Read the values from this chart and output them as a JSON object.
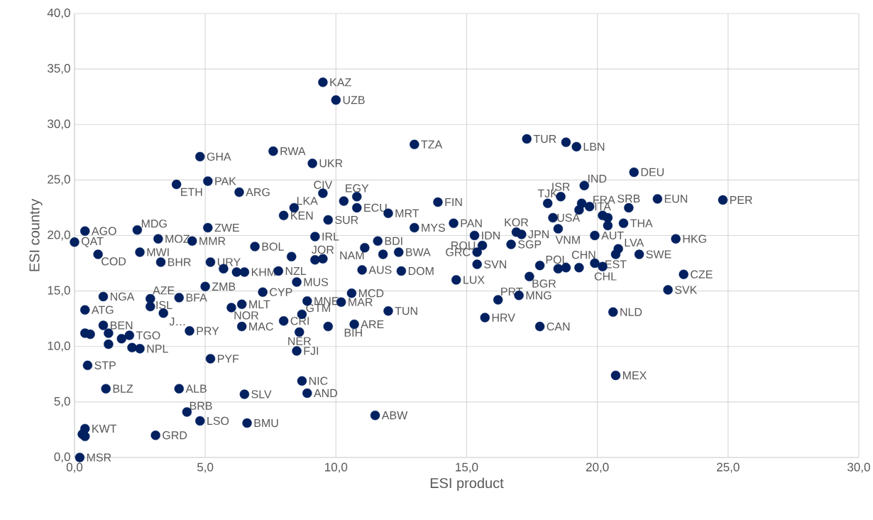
{
  "chart_data": {
    "type": "scatter",
    "xlabel": "ESI product",
    "ylabel": "ESI country",
    "color": "#002060",
    "marker": "circle",
    "grid": true,
    "xlim": [
      0,
      30
    ],
    "ylim": [
      0,
      40
    ],
    "xticks": [
      {
        "value": 0,
        "label": "0,0"
      },
      {
        "value": 5,
        "label": "5,0"
      },
      {
        "value": 10,
        "label": "10,0"
      },
      {
        "value": 15,
        "label": "15,0"
      },
      {
        "value": 20,
        "label": "20,0"
      },
      {
        "value": 25,
        "label": "25,0"
      },
      {
        "value": 30,
        "label": "30,0"
      }
    ],
    "yticks": [
      {
        "value": 0,
        "label": "0,0"
      },
      {
        "value": 5,
        "label": "5,0"
      },
      {
        "value": 10,
        "label": "10,0"
      },
      {
        "value": 15,
        "label": "15,0"
      },
      {
        "value": 20,
        "label": "20,0"
      },
      {
        "value": 25,
        "label": "25,0"
      },
      {
        "value": 30,
        "label": "30,0"
      },
      {
        "value": 35,
        "label": "35,0"
      },
      {
        "value": 40,
        "label": "40,0"
      }
    ],
    "x": [
      9.5,
      10.0,
      17.3,
      18.8,
      19.2,
      13.0,
      4.8,
      7.6,
      9.1,
      21.4,
      5.1,
      3.9,
      6.3,
      9.5,
      10.3,
      10.8,
      10.8,
      12.0,
      13.9,
      8.4,
      8.0,
      9.7,
      9.2,
      19.5,
      18.6,
      18.1,
      19.7,
      19.4,
      19.3,
      21.2,
      22.3,
      24.8,
      20.2,
      20.4,
      20.4,
      21.0,
      16.9,
      17.1,
      18.3,
      18.5,
      19.9,
      20.8,
      20.7,
      21.6,
      23.0,
      23.3,
      22.7,
      19.9,
      20.2,
      18.5,
      18.8,
      19.3,
      17.8,
      17.4,
      16.7,
      15.3,
      14.5,
      13.0,
      15.6,
      15.4,
      15.4,
      14.6,
      16.2,
      17.0,
      15.7,
      17.8,
      20.6,
      20.7,
      11.6,
      11.1,
      11.8,
      12.4,
      9.5,
      9.2,
      8.3,
      11.0,
      12.5,
      5.1,
      4.5,
      6.9,
      2.4,
      0.4,
      0.0,
      3.2,
      2.5,
      0.9,
      3.3,
      5.2,
      5.7,
      6.2,
      6.5,
      7.8,
      1.1,
      0.4,
      2.9,
      2.9,
      3.4,
      4.0,
      5.0,
      1.1,
      0.4,
      0.6,
      1.3,
      1.8,
      2.1,
      1.3,
      2.2,
      2.5,
      4.4,
      0.5,
      1.2,
      4.0,
      6.5,
      4.3,
      4.8,
      6.6,
      3.1,
      0.4,
      0.3,
      0.4,
      0.2,
      6.0,
      6.4,
      7.2,
      6.4,
      8.0,
      8.7,
      8.6,
      9.7,
      8.5,
      8.5,
      8.7,
      8.9,
      5.2,
      8.9,
      10.2,
      10.6,
      12.0,
      10.7,
      11.5
    ],
    "values": [
      33.8,
      32.2,
      28.7,
      28.4,
      28.0,
      28.2,
      27.1,
      27.6,
      26.5,
      25.7,
      24.9,
      24.6,
      23.9,
      23.8,
      23.1,
      23.5,
      22.5,
      22.0,
      23.0,
      22.5,
      21.8,
      21.4,
      19.9,
      24.5,
      23.5,
      22.9,
      22.6,
      22.9,
      22.3,
      22.5,
      23.3,
      23.2,
      21.8,
      21.6,
      20.9,
      21.1,
      20.3,
      20.1,
      21.6,
      20.6,
      20.0,
      18.8,
      18.3,
      18.3,
      19.7,
      16.5,
      15.1,
      17.5,
      17.2,
      17.0,
      17.1,
      17.1,
      17.3,
      16.3,
      19.2,
      20.0,
      21.1,
      20.7,
      19.1,
      18.5,
      17.4,
      16.0,
      14.2,
      14.6,
      12.6,
      11.8,
      13.1,
      7.4,
      19.5,
      18.9,
      18.3,
      18.5,
      17.9,
      17.8,
      18.1,
      16.9,
      16.8,
      20.7,
      19.5,
      19.0,
      20.5,
      20.4,
      19.4,
      19.7,
      18.5,
      18.3,
      17.6,
      17.6,
      17.0,
      16.7,
      16.7,
      16.8,
      14.5,
      13.3,
      14.3,
      13.6,
      13.0,
      14.4,
      15.4,
      11.9,
      11.2,
      11.1,
      11.2,
      10.7,
      11.0,
      10.2,
      9.9,
      9.8,
      11.4,
      8.3,
      6.2,
      6.2,
      5.7,
      4.1,
      3.3,
      3.1,
      2.0,
      2.6,
      2.1,
      1.9,
      0.0,
      13.5,
      13.8,
      14.9,
      11.8,
      12.3,
      12.9,
      11.3,
      11.8,
      9.6,
      15.8,
      6.9,
      5.8,
      8.9,
      14.1,
      14.0,
      14.8,
      13.2,
      12.0,
      3.8
    ],
    "value_labels": [
      "KAZ",
      "UZB",
      "TUR",
      null,
      "LBN",
      "TZA",
      "GHA",
      "RWA",
      "UKR",
      "DEU",
      "PAK",
      "ETH",
      "ARG",
      "CIV",
      null,
      "EGY",
      "ECU",
      "MRT",
      "FIN",
      "LKA",
      "KEN",
      "SUR",
      "IRL",
      "IND",
      "ISR",
      "TJK",
      "FRA",
      null,
      null,
      "SRB",
      "EUN",
      "PER",
      "ITA",
      null,
      null,
      "THA",
      "KOR",
      "JPN",
      "USA",
      "VNM",
      "AUT",
      "LVA",
      "EST",
      "SWE",
      "HKG",
      "CZE",
      "SVK",
      "CHN",
      "CHL",
      "POL",
      null,
      null,
      null,
      "BGR",
      "SGP",
      "IDN",
      "PAN",
      "MYS",
      "ROU",
      "GRC",
      "SVN",
      "LUX",
      "PRT",
      "MNG",
      "HRV",
      "CAN",
      "NLD",
      "MEX",
      "BDI",
      "NAM",
      null,
      "BWA",
      "JOR",
      null,
      null,
      "AUS",
      "DOM",
      "ZWE",
      "MMR",
      "BOL",
      "MDG",
      "AGO",
      "QAT",
      "MOZ",
      "MWI",
      "COD",
      "BHR",
      "URY",
      null,
      null,
      "KHM",
      "NZL",
      "NGA",
      "ATG",
      "AZE",
      "ISL",
      "J…",
      "BFA",
      "ZMB",
      "BEN",
      null,
      null,
      null,
      null,
      "TGO",
      null,
      null,
      "NPL",
      "PRY",
      "STP",
      "BLZ",
      "ALB",
      "SLV",
      "BRB",
      "LSO",
      "BMU",
      "GRD",
      "KWT",
      null,
      null,
      "MSR",
      "NOR",
      "MLT",
      "CYP",
      "MAC",
      "CRI",
      "GTM",
      "NER",
      "BIH",
      "FJI",
      "MUS",
      "NIC",
      "AND",
      "PYF",
      "MNE",
      "MAR",
      "MCD",
      "TUN",
      "ARE",
      "ABW"
    ]
  }
}
